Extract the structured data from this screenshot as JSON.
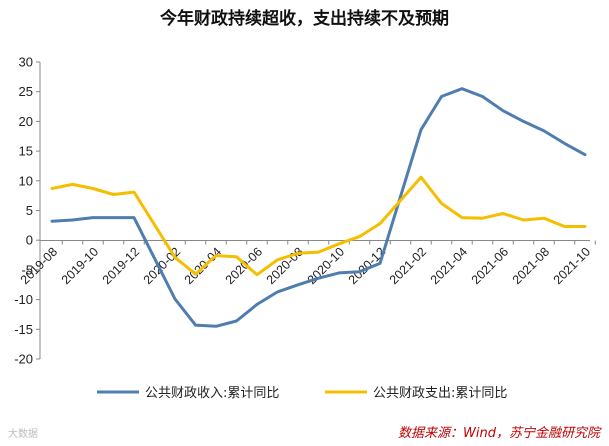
{
  "chart_data": {
    "type": "line",
    "title": "今年财政持续超收，支出持续不及预期",
    "xlabel": "",
    "ylabel": "",
    "ylim": [
      -20,
      30
    ],
    "yticks": [
      30,
      25,
      20,
      15,
      10,
      5,
      0,
      -5,
      -10,
      -15,
      -20
    ],
    "grid": false,
    "legend_position": "bottom",
    "x": [
      "2019-08",
      "2019-09",
      "2019-10",
      "2019-11",
      "2019-12",
      "2020-01",
      "2020-02",
      "2020-03",
      "2020-04",
      "2020-05",
      "2020-06",
      "2020-07",
      "2020-08",
      "2020-09",
      "2020-10",
      "2020-11",
      "2020-12",
      "2021-01",
      "2021-02",
      "2021-03",
      "2021-04",
      "2021-05",
      "2021-06",
      "2021-07",
      "2021-08",
      "2021-09",
      "2021-10"
    ],
    "xtick_labels": [
      "2019-08",
      "2019-10",
      "2019-12",
      "2020-02",
      "2020-04",
      "2020-06",
      "2020-08",
      "2020-10",
      "2020-12",
      "2021-02",
      "2021-04",
      "2021-06",
      "2021-08",
      "2021-10"
    ],
    "series": [
      {
        "name": "公共财政收入:累计同比",
        "color": "#4f7db0",
        "values": [
          3.2,
          3.4,
          3.8,
          3.8,
          3.8,
          null,
          -9.9,
          -14.3,
          -14.5,
          -13.6,
          -10.8,
          -8.7,
          -7.5,
          -6.4,
          -5.5,
          -5.3,
          -3.9,
          null,
          18.6,
          24.2,
          25.5,
          24.2,
          21.8,
          20.0,
          18.4,
          16.3,
          14.4
        ]
      },
      {
        "name": "公共财政支出:累计同比",
        "color": "#f5be00",
        "values": [
          8.7,
          9.4,
          8.7,
          7.7,
          8.1,
          null,
          -2.9,
          -5.7,
          -2.6,
          -2.8,
          -5.8,
          -3.3,
          -2.2,
          -2.0,
          -0.6,
          0.6,
          2.8,
          null,
          10.6,
          6.2,
          3.8,
          3.7,
          4.5,
          3.4,
          3.7,
          2.3,
          2.3
        ]
      }
    ]
  },
  "source_note": "数据来源：Wind，苏宁金融研究院",
  "watermark": "大数据"
}
